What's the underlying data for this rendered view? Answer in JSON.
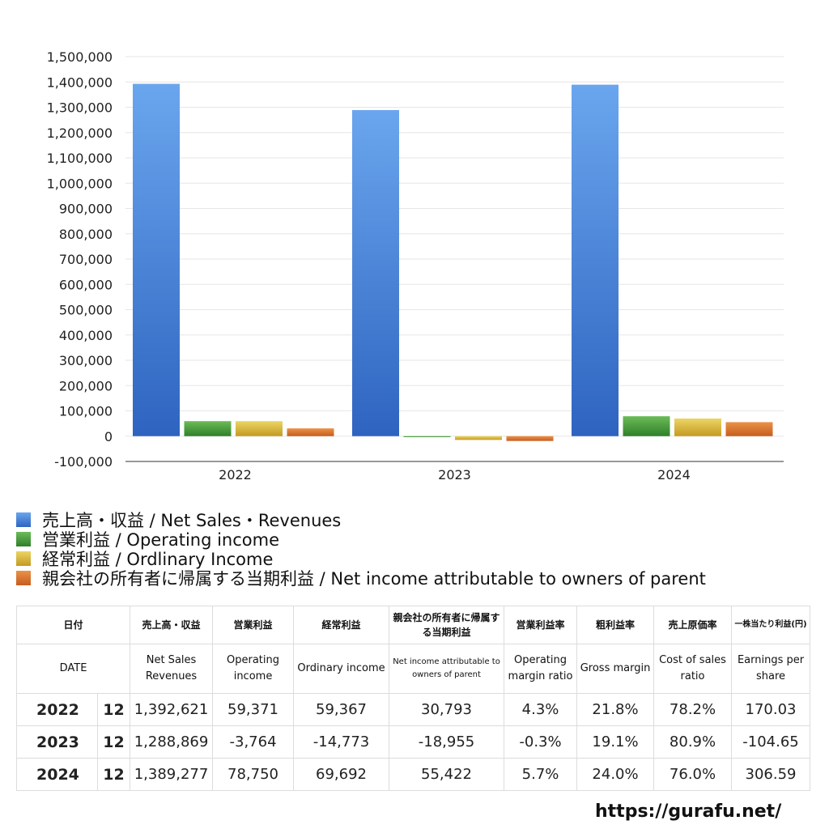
{
  "colors": {
    "net_sales": "#4a86d8",
    "operating_income": "#4c9a3c",
    "ordinary_income": "#d6b83a",
    "net_income_parent": "#d9772e",
    "negative_text": "#d44a2a"
  },
  "chart_data": {
    "type": "bar",
    "categories": [
      "2022",
      "2023",
      "2024"
    ],
    "series": [
      {
        "name": "売上高・収益 / Net Sales・Revenues",
        "values": [
          1392621,
          1288869,
          1389277
        ]
      },
      {
        "name": "営業利益 / Operating income",
        "values": [
          59371,
          -3764,
          78750
        ]
      },
      {
        "name": "経常利益 / Ordlinary Income",
        "values": [
          59367,
          -14773,
          69692
        ]
      },
      {
        "name": "親会社の所有者に帰属する当期利益 / Net income attributable to owners of parent",
        "values": [
          30793,
          -18955,
          55422
        ]
      }
    ],
    "ylim": [
      -100000,
      1500000
    ],
    "yticks": [
      -100000,
      0,
      100000,
      200000,
      300000,
      400000,
      500000,
      600000,
      700000,
      800000,
      900000,
      1000000,
      1100000,
      1200000,
      1300000,
      1400000,
      1500000
    ],
    "ytick_labels": [
      "-100,000",
      "0",
      "100,000",
      "200,000",
      "300,000",
      "400,000",
      "500,000",
      "600,000",
      "700,000",
      "800,000",
      "900,000",
      "1,000,000",
      "1,100,000",
      "1,200,000",
      "1,300,000",
      "1,400,000",
      "1,500,000"
    ],
    "grid": true,
    "legend": "bottom"
  },
  "table": {
    "headers_jp": [
      "日付",
      "売上高・収益",
      "営業利益",
      "経常利益",
      "親会社の所有者に帰属する当期利益",
      "営業利益率",
      "粗利益率",
      "売上原価率",
      "一株当たり利益(円)"
    ],
    "headers_en": [
      "DATE",
      "Net Sales Revenues",
      "Operating income",
      "Ordinary income",
      "Net income attributable to owners of parent",
      "Operating margin ratio",
      "Gross margin",
      "Cost of sales ratio",
      "Earnings per share"
    ],
    "rows": [
      {
        "year": "2022",
        "month": "12",
        "net_sales": "1,392,621",
        "operating_income": "59,371",
        "ordinary_income": "59,367",
        "net_income": "30,793",
        "operating_margin": "4.3%",
        "gross_margin": "21.8%",
        "cost_ratio": "78.2%",
        "eps": "170.03"
      },
      {
        "year": "2023",
        "month": "12",
        "net_sales": "1,288,869",
        "operating_income": "-3,764",
        "ordinary_income": "-14,773",
        "net_income": "-18,955",
        "operating_margin": "-0.3%",
        "gross_margin": "19.1%",
        "cost_ratio": "80.9%",
        "eps": "-104.65"
      },
      {
        "year": "2024",
        "month": "12",
        "net_sales": "1,389,277",
        "operating_income": "78,750",
        "ordinary_income": "69,692",
        "net_income": "55,422",
        "operating_margin": "5.7%",
        "gross_margin": "24.0%",
        "cost_ratio": "76.0%",
        "eps": "306.59"
      }
    ]
  },
  "site_url": "https://gurafu.net/"
}
